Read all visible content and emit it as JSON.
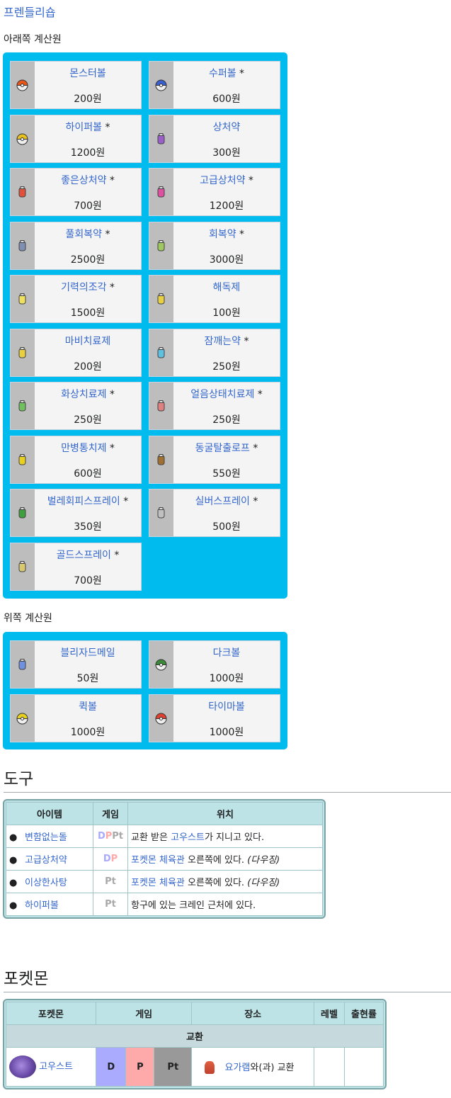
{
  "shop_link": "프렌들리숍",
  "lower_counter": {
    "title": "아래쪽 계산원",
    "items": [
      {
        "name": "몬스터볼",
        "star": "",
        "price": "200원",
        "icon": "monster-ball-icon",
        "color": "#e8561a"
      },
      {
        "name": "수퍼볼",
        "star": " *",
        "price": "600원",
        "icon": "super-ball-icon",
        "color": "#3a5fd0"
      },
      {
        "name": "하이퍼볼",
        "star": " *",
        "price": "1200원",
        "icon": "hyper-ball-icon",
        "color": "#e8c020"
      },
      {
        "name": "상처약",
        "star": "",
        "price": "300원",
        "icon": "potion-icon",
        "color": "#9a5fc8"
      },
      {
        "name": "좋은상처약",
        "star": " *",
        "price": "700원",
        "icon": "super-potion-icon",
        "color": "#e0503a"
      },
      {
        "name": "고급상처약",
        "star": " *",
        "price": "1200원",
        "icon": "hyper-potion-icon",
        "color": "#e050a0"
      },
      {
        "name": "풀회복약",
        "star": " *",
        "price": "2500원",
        "icon": "full-restore-icon",
        "color": "#8090b0"
      },
      {
        "name": "회복약",
        "star": " *",
        "price": "3000원",
        "icon": "max-potion-icon",
        "color": "#a0c860"
      },
      {
        "name": "기력의조각",
        "star": " *",
        "price": "1500원",
        "icon": "revive-icon",
        "color": "#f0e060"
      },
      {
        "name": "해독제",
        "star": "",
        "price": "100원",
        "icon": "antidote-icon",
        "color": "#e8d040"
      },
      {
        "name": "마비치료제",
        "star": "",
        "price": "200원",
        "icon": "paralyze-heal-icon",
        "color": "#e8d040"
      },
      {
        "name": "잠깨는약",
        "star": " *",
        "price": "250원",
        "icon": "awakening-icon",
        "color": "#60c0e0"
      },
      {
        "name": "화상치료제",
        "star": " *",
        "price": "250원",
        "icon": "burn-heal-icon",
        "color": "#70c060"
      },
      {
        "name": "얼음상태치료제",
        "star": " *",
        "price": "250원",
        "icon": "ice-heal-icon",
        "color": "#e08080"
      },
      {
        "name": "만병통치제",
        "star": " *",
        "price": "600원",
        "icon": "full-heal-icon",
        "color": "#e8d020"
      },
      {
        "name": "동굴탈출로프",
        "star": " *",
        "price": "550원",
        "icon": "escape-rope-icon",
        "color": "#a07030"
      },
      {
        "name": "벌레회피스프레이",
        "star": " *",
        "price": "350원",
        "icon": "repel-icon",
        "color": "#40a040"
      },
      {
        "name": "실버스프레이",
        "star": " *",
        "price": "500원",
        "icon": "super-repel-icon",
        "color": "#c0c0c0"
      },
      {
        "name": "골드스프레이",
        "star": " *",
        "price": "700원",
        "icon": "max-repel-icon",
        "color": "#d8c870"
      }
    ]
  },
  "upper_counter": {
    "title": "위쪽 계산원",
    "items": [
      {
        "name": "블리자드메일",
        "star": "",
        "price": "50원",
        "icon": "mail-icon",
        "color": "#7090e0"
      },
      {
        "name": "다크볼",
        "star": "",
        "price": "1000원",
        "icon": "dusk-ball-icon",
        "color": "#3a8a3a"
      },
      {
        "name": "퀵볼",
        "star": "",
        "price": "1000원",
        "icon": "quick-ball-icon",
        "color": "#e8d020"
      },
      {
        "name": "타이마볼",
        "star": "",
        "price": "1000원",
        "icon": "timer-ball-icon",
        "color": "#e04030"
      }
    ]
  },
  "items_section": {
    "heading": "도구",
    "headers": [
      "아이템",
      "게임",
      "위치"
    ],
    "rows": [
      {
        "item": "변함없는돌",
        "icon": "everstone-icon",
        "game": [
          "D",
          "P",
          "Pt"
        ],
        "loc_pre": "교환 받은 ",
        "loc_link": "고우스트",
        "loc_post": "가 지니고 있다.",
        "loc_link2": "",
        "loc_note": ""
      },
      {
        "item": "고급상처약",
        "icon": "hyper-potion-icon",
        "game": [
          "D",
          "P"
        ],
        "loc_pre": "",
        "loc_link": "포켓몬 체육관",
        "loc_post": " 오른쪽에 있다.",
        "loc_note": "(다우징)"
      },
      {
        "item": "이상한사탕",
        "icon": "rare-candy-icon",
        "game": [
          "Pt"
        ],
        "loc_pre": "",
        "loc_link": "포켓몬 체육관",
        "loc_post": " 오른쪽에 있다.",
        "loc_note": "(다우징)"
      },
      {
        "item": "하이퍼볼",
        "icon": "hyper-ball-icon",
        "game": [
          "Pt"
        ],
        "loc_pre": "항구에 있는 크레인 근처에 있다.",
        "loc_link": "",
        "loc_post": "",
        "loc_note": ""
      }
    ]
  },
  "pokemon_section": {
    "heading": "포켓몬",
    "headers": [
      "포켓몬",
      "게임",
      "장소",
      "레벨",
      "출현률"
    ],
    "group": "교환",
    "row": {
      "pokemon": "고우스트",
      "games": [
        "D",
        "P",
        "Pt"
      ],
      "place_link": "요가램",
      "place_post": "와(과) 교환",
      "level": "",
      "rate": ""
    }
  }
}
